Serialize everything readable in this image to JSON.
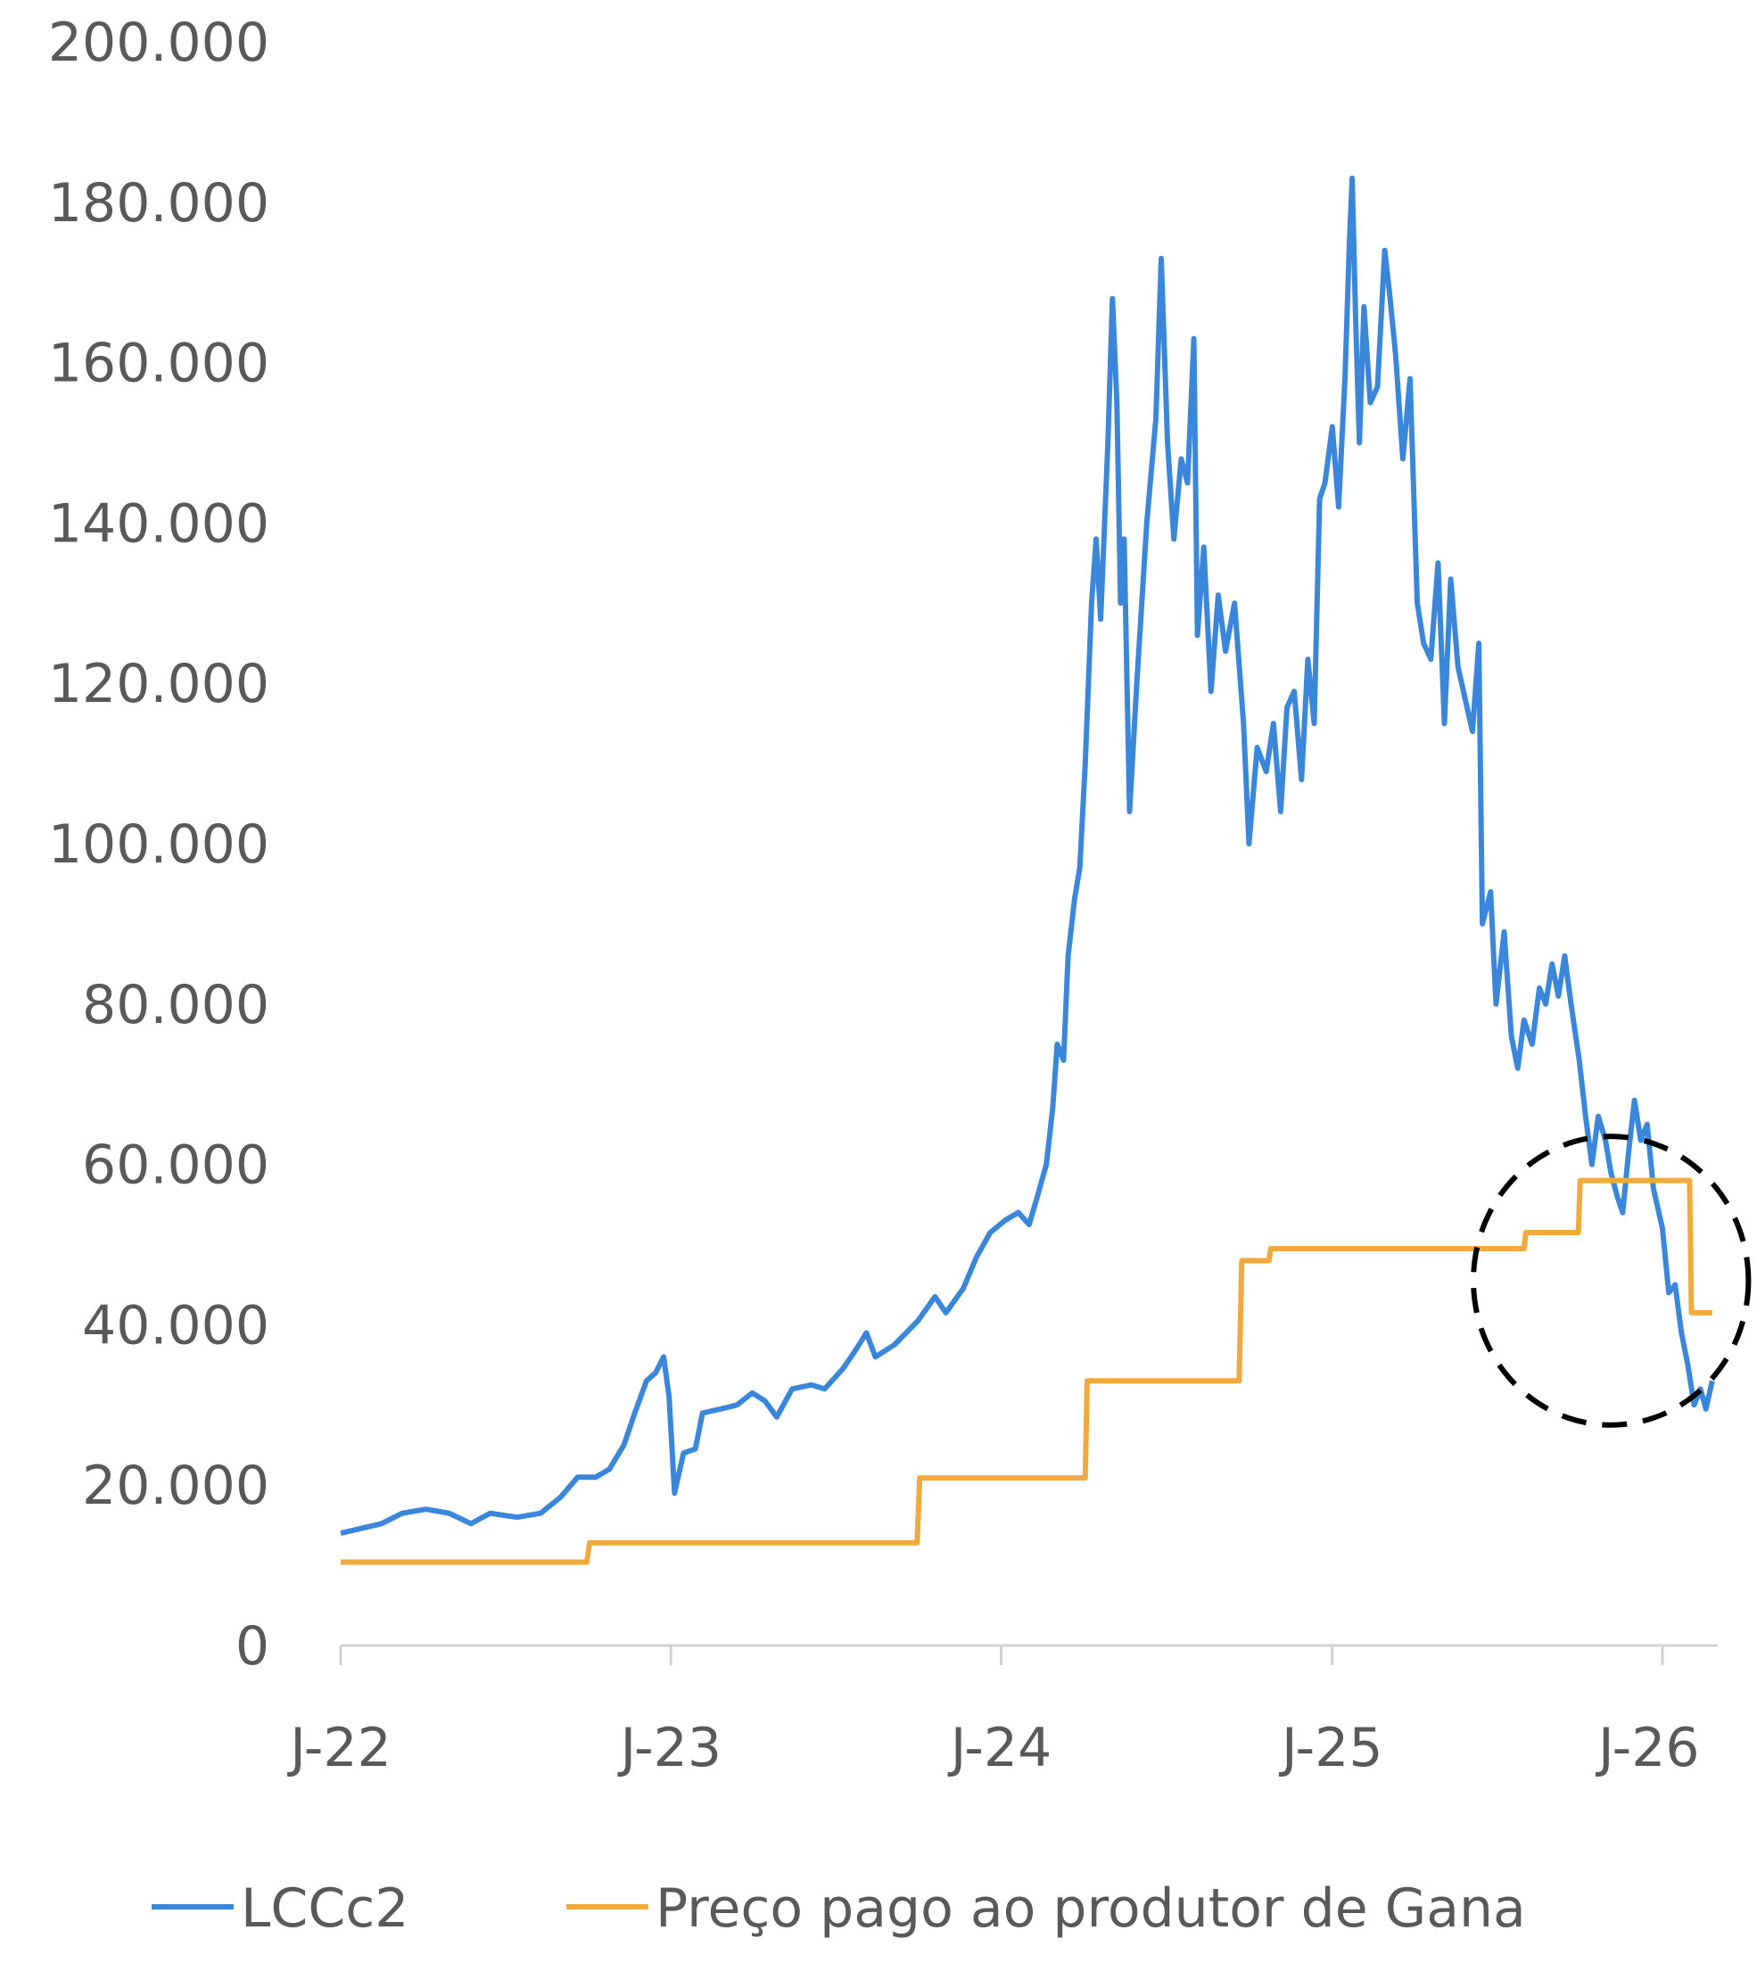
{
  "chart_data": {
    "type": "line",
    "title": "",
    "xlabel": "",
    "ylabel": "",
    "ylim": [
      0,
      200000
    ],
    "y_ticks": [
      0,
      20000,
      40000,
      60000,
      80000,
      100000,
      120000,
      140000,
      160000,
      180000,
      200000
    ],
    "y_tick_labels": [
      "0",
      "20.000",
      "40.000",
      "60.000",
      "80.000",
      "100.000",
      "120.000",
      "140.000",
      "160.000",
      "180.000",
      "200.000"
    ],
    "xlim": [
      "2022-01-01",
      "2026-03-05"
    ],
    "x_ticks": [
      "2022-01-01",
      "2023-01-01",
      "2024-01-01",
      "2025-01-01",
      "2026-01-01"
    ],
    "x_tick_labels": [
      "J-22",
      "J-23",
      "J-24",
      "J-25",
      "J-26"
    ],
    "legend_position": "bottom",
    "annotation": {
      "shape": "dashed-circle",
      "center_x": "2025-11-05",
      "center_y": 45500,
      "radius_x_days": 38,
      "radius_y": 18000,
      "color": "#000000"
    },
    "series": [
      {
        "name": "LCCc2",
        "color": "#3A86DB",
        "points": [
          [
            "2022-01-01",
            14000
          ],
          [
            "2022-01-20",
            14500
          ],
          [
            "2022-02-15",
            15200
          ],
          [
            "2022-03-10",
            16500
          ],
          [
            "2022-04-05",
            17000
          ],
          [
            "2022-05-01",
            16500
          ],
          [
            "2022-05-25",
            15200
          ],
          [
            "2022-06-15",
            16500
          ],
          [
            "2022-07-15",
            16000
          ],
          [
            "2022-08-10",
            16500
          ],
          [
            "2022-09-01",
            18500
          ],
          [
            "2022-09-20",
            21000
          ],
          [
            "2022-10-10",
            21000
          ],
          [
            "2022-10-25",
            22000
          ],
          [
            "2022-11-10",
            25000
          ],
          [
            "2022-11-22",
            29000
          ],
          [
            "2022-12-05",
            33000
          ],
          [
            "2022-12-15",
            34000
          ],
          [
            "2022-12-24",
            36000
          ],
          [
            "2022-12-30",
            31000
          ],
          [
            "2023-01-05",
            19000
          ],
          [
            "2023-01-15",
            24000
          ],
          [
            "2023-01-28",
            24500
          ],
          [
            "2023-02-05",
            29000
          ],
          [
            "2023-02-25",
            29500
          ],
          [
            "2023-03-15",
            30000
          ],
          [
            "2023-04-01",
            31500
          ],
          [
            "2023-04-15",
            30500
          ],
          [
            "2023-04-28",
            28500
          ],
          [
            "2023-05-15",
            32000
          ],
          [
            "2023-06-05",
            32500
          ],
          [
            "2023-06-20",
            32000
          ],
          [
            "2023-07-10",
            34500
          ],
          [
            "2023-07-25",
            37000
          ],
          [
            "2023-08-05",
            39000
          ],
          [
            "2023-08-15",
            36000
          ],
          [
            "2023-09-05",
            37500
          ],
          [
            "2023-10-01",
            40500
          ],
          [
            "2023-10-20",
            43500
          ],
          [
            "2023-11-01",
            41500
          ],
          [
            "2023-11-20",
            44500
          ],
          [
            "2023-12-05",
            48500
          ],
          [
            "2023-12-20",
            51500
          ],
          [
            "2024-01-05",
            53000
          ],
          [
            "2024-01-20",
            54000
          ],
          [
            "2024-02-01",
            52500
          ],
          [
            "2024-02-10",
            56000
          ],
          [
            "2024-02-20",
            60000
          ],
          [
            "2024-02-27",
            67000
          ],
          [
            "2024-03-03",
            75000
          ],
          [
            "2024-03-10",
            73000
          ],
          [
            "2024-03-15",
            86000
          ],
          [
            "2024-03-22",
            93000
          ],
          [
            "2024-03-28",
            97000
          ],
          [
            "2024-04-03",
            110000
          ],
          [
            "2024-04-10",
            130000
          ],
          [
            "2024-04-15",
            138000
          ],
          [
            "2024-04-20",
            128000
          ],
          [
            "2024-04-28",
            150000
          ],
          [
            "2024-05-03",
            168000
          ],
          [
            "2024-05-08",
            155000
          ],
          [
            "2024-05-12",
            130000
          ],
          [
            "2024-05-16",
            138000
          ],
          [
            "2024-05-22",
            104000
          ],
          [
            "2024-05-30",
            120000
          ],
          [
            "2024-06-10",
            140000
          ],
          [
            "2024-06-20",
            153000
          ],
          [
            "2024-06-26",
            173000
          ],
          [
            "2024-07-03",
            150000
          ],
          [
            "2024-07-10",
            138000
          ],
          [
            "2024-07-18",
            148000
          ],
          [
            "2024-07-25",
            145000
          ],
          [
            "2024-08-01",
            163000
          ],
          [
            "2024-08-05",
            126000
          ],
          [
            "2024-08-12",
            137000
          ],
          [
            "2024-08-20",
            119000
          ],
          [
            "2024-08-28",
            131000
          ],
          [
            "2024-09-05",
            124000
          ],
          [
            "2024-09-15",
            130000
          ],
          [
            "2024-09-25",
            115000
          ],
          [
            "2024-10-01",
            100000
          ],
          [
            "2024-10-10",
            112000
          ],
          [
            "2024-10-20",
            109000
          ],
          [
            "2024-10-28",
            115000
          ],
          [
            "2024-11-05",
            104000
          ],
          [
            "2024-11-12",
            117000
          ],
          [
            "2024-11-20",
            119000
          ],
          [
            "2024-11-28",
            108000
          ],
          [
            "2024-12-05",
            123000
          ],
          [
            "2024-12-12",
            115000
          ],
          [
            "2024-12-18",
            143000
          ],
          [
            "2024-12-24",
            145000
          ],
          [
            "2025-01-01",
            152000
          ],
          [
            "2025-01-08",
            142000
          ],
          [
            "2025-01-15",
            158000
          ],
          [
            "2025-01-20",
            175000
          ],
          [
            "2025-01-23",
            183000
          ],
          [
            "2025-01-27",
            165000
          ],
          [
            "2025-01-31",
            150000
          ],
          [
            "2025-02-05",
            167000
          ],
          [
            "2025-02-12",
            155000
          ],
          [
            "2025-02-20",
            157000
          ],
          [
            "2025-02-28",
            174000
          ],
          [
            "2025-03-05",
            169000
          ],
          [
            "2025-03-12",
            161000
          ],
          [
            "2025-03-20",
            148000
          ],
          [
            "2025-03-28",
            158000
          ],
          [
            "2025-04-05",
            130000
          ],
          [
            "2025-04-12",
            125000
          ],
          [
            "2025-04-20",
            123000
          ],
          [
            "2025-04-28",
            135000
          ],
          [
            "2025-05-05",
            115000
          ],
          [
            "2025-05-12",
            133000
          ],
          [
            "2025-05-20",
            122000
          ],
          [
            "2025-05-28",
            118000
          ],
          [
            "2025-06-05",
            114000
          ],
          [
            "2025-06-12",
            125000
          ],
          [
            "2025-06-16",
            90000
          ],
          [
            "2025-06-25",
            94000
          ],
          [
            "2025-07-01",
            80000
          ],
          [
            "2025-07-10",
            89000
          ],
          [
            "2025-07-18",
            76000
          ],
          [
            "2025-07-25",
            72000
          ],
          [
            "2025-08-01",
            78000
          ],
          [
            "2025-08-10",
            75000
          ],
          [
            "2025-08-18",
            82000
          ],
          [
            "2025-08-25",
            80000
          ],
          [
            "2025-09-01",
            85000
          ],
          [
            "2025-09-08",
            81000
          ],
          [
            "2025-09-15",
            86000
          ],
          [
            "2025-09-22",
            80000
          ],
          [
            "2025-10-01",
            73000
          ],
          [
            "2025-10-08",
            66000
          ],
          [
            "2025-10-15",
            60000
          ],
          [
            "2025-10-22",
            66000
          ],
          [
            "2025-10-30",
            63000
          ],
          [
            "2025-11-05",
            59000
          ],
          [
            "2025-11-12",
            56000
          ],
          [
            "2025-11-18",
            54000
          ],
          [
            "2025-11-25",
            62000
          ],
          [
            "2025-12-01",
            68000
          ],
          [
            "2025-12-08",
            63000
          ],
          [
            "2025-12-15",
            65000
          ],
          [
            "2025-12-22",
            57000
          ],
          [
            "2026-01-01",
            52000
          ],
          [
            "2026-01-08",
            44000
          ],
          [
            "2026-01-15",
            45000
          ],
          [
            "2026-01-22",
            39000
          ],
          [
            "2026-01-29",
            35000
          ],
          [
            "2026-02-05",
            30000
          ],
          [
            "2026-02-12",
            32000
          ],
          [
            "2026-02-18",
            29500
          ],
          [
            "2026-02-25",
            33000
          ]
        ]
      },
      {
        "name": "Preço pago ao produtor de Gana",
        "color": "#F2A93B",
        "points": [
          [
            "2022-01-01",
            10400
          ],
          [
            "2022-09-30",
            10400
          ],
          [
            "2022-10-03",
            12800
          ],
          [
            "2023-09-30",
            12800
          ],
          [
            "2023-10-03",
            20900
          ],
          [
            "2024-04-03",
            20900
          ],
          [
            "2024-04-05",
            33000
          ],
          [
            "2024-09-20",
            33000
          ],
          [
            "2024-09-23",
            48000
          ],
          [
            "2024-10-23",
            48000
          ],
          [
            "2024-10-25",
            49500
          ],
          [
            "2025-08-01",
            49500
          ],
          [
            "2025-08-03",
            51500
          ],
          [
            "2025-09-30",
            51500
          ],
          [
            "2025-10-02",
            58000
          ],
          [
            "2026-01-31",
            58000
          ],
          [
            "2026-02-02",
            41500
          ],
          [
            "2026-02-25",
            41500
          ]
        ]
      }
    ]
  }
}
